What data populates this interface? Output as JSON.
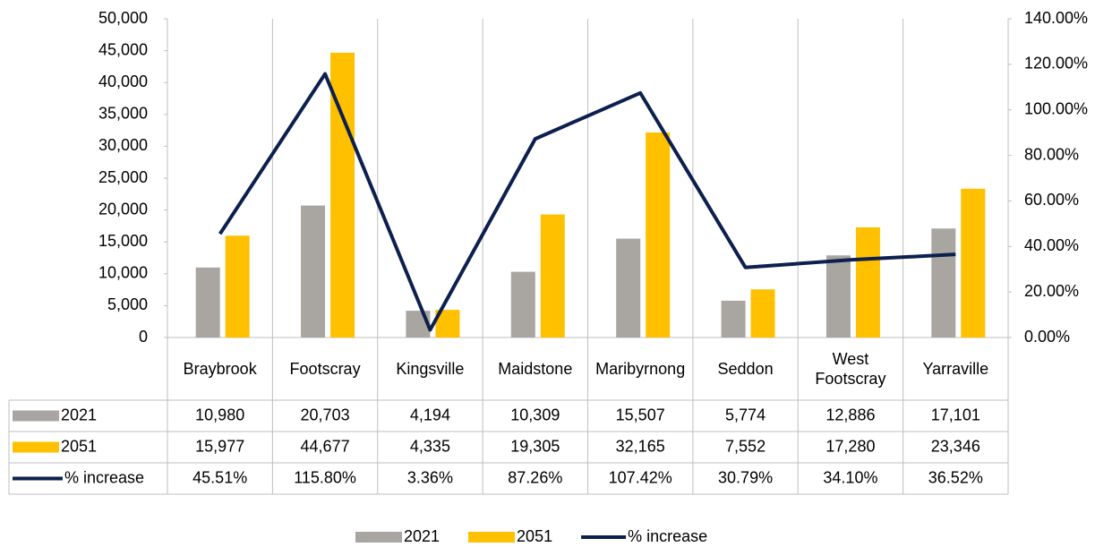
{
  "chart_data": {
    "type": "bar",
    "categories": [
      "Braybrook",
      "Footscray",
      "Kingsville",
      "Maidstone",
      "Maribyrnong",
      "Seddon",
      "West Footscray",
      "Yarraville"
    ],
    "series": [
      {
        "name": "2021",
        "color": "#a9a5a1",
        "type": "bar",
        "values": [
          10980,
          20703,
          4194,
          10309,
          15507,
          5774,
          12886,
          17101
        ],
        "value_labels": [
          "10,980",
          "20,703",
          "4,194",
          "10,309",
          "15,507",
          "5,774",
          "12,886",
          "17,101"
        ]
      },
      {
        "name": "2051",
        "color": "#ffc000",
        "type": "bar",
        "values": [
          15977,
          44677,
          4335,
          19305,
          32165,
          7552,
          17280,
          23346
        ],
        "value_labels": [
          "15,977",
          "44,677",
          "4,335",
          "19,305",
          "32,165",
          "7,552",
          "17,280",
          "23,346"
        ]
      },
      {
        "name": "% increase",
        "color": "#0d1f4f",
        "type": "line",
        "axis": "y2",
        "values": [
          45.51,
          115.8,
          3.36,
          87.26,
          107.42,
          30.79,
          34.1,
          36.52
        ],
        "value_labels": [
          "45.51%",
          "115.80%",
          "3.36%",
          "87.26%",
          "107.42%",
          "30.79%",
          "34.10%",
          "36.52%"
        ]
      }
    ],
    "ylim": [
      0,
      50000
    ],
    "yticks": [
      0,
      {
        "value": 5000,
        "label": "5,000"
      },
      {
        "value": 10000,
        "label": "10,000"
      },
      {
        "value": 15000,
        "label": "15,000"
      },
      {
        "value": 20000,
        "label": "20,000"
      },
      {
        "value": 25000,
        "label": "25,000"
      },
      {
        "value": 30000,
        "label": "30,000"
      },
      {
        "value": 35000,
        "label": "35,000"
      },
      {
        "value": 40000,
        "label": "40,000"
      },
      {
        "value": 45000,
        "label": "45,000"
      },
      {
        "value": 50000,
        "label": "50,000"
      }
    ],
    "y2lim": [
      0,
      140
    ],
    "y2ticks": [
      {
        "value": 0,
        "label": "0.00%"
      },
      {
        "value": 20,
        "label": "20.00%"
      },
      {
        "value": 40,
        "label": "40.00%"
      },
      {
        "value": 60,
        "label": "60.00%"
      },
      {
        "value": 80,
        "label": "80.00%"
      },
      {
        "value": 100,
        "label": "100.00%"
      },
      {
        "value": 120,
        "label": "120.00%"
      },
      {
        "value": 140,
        "label": "140.00%"
      }
    ],
    "legend": "bottom"
  }
}
